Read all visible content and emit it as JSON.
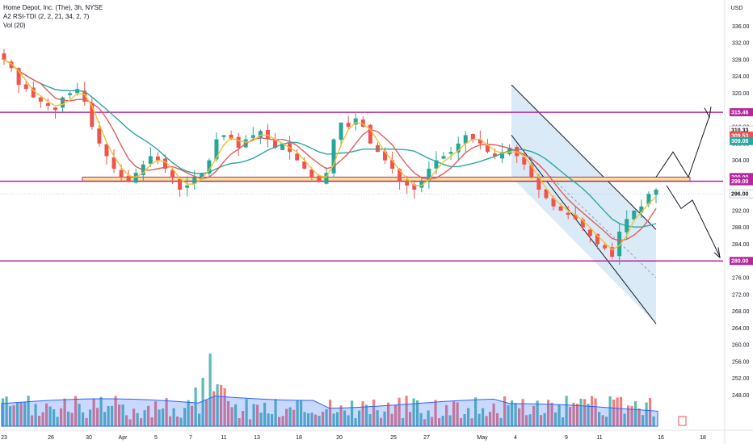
{
  "legend": {
    "title": "Home Depot, Inc. (The), 3h, NYSE",
    "indicator1": "A2 RSI-TDI (2, 2, 21, 34, 2, 7)",
    "indicator2": "Vol (20)"
  },
  "currency": "USD",
  "colors": {
    "up": "#26a69a",
    "down": "#ef5350",
    "level": "#b5289c",
    "support": "#f6e58d",
    "channel": "#bcd9f0",
    "ma_teal": "#2aa7a1",
    "ma_red": "#e05d5d",
    "ma_yellow": "#f2c230",
    "vol_area": "#2962ff"
  },
  "chart_data": {
    "type": "candlestick",
    "y_axis": {
      "ylim": [
        245,
        338
      ],
      "ticks": [
        "336.00",
        "332.00",
        "328.00",
        "324.00",
        "320.00",
        "316.00",
        "312.00",
        "308.00",
        "304.00",
        "300.00",
        "296.00",
        "292.00",
        "288.00",
        "284.00",
        "280.00",
        "276.00",
        "272.00",
        "268.00",
        "264.00",
        "260.00",
        "256.00",
        "252.00",
        "248.00"
      ]
    },
    "x_axis": {
      "ticks": [
        "23",
        "26",
        "30",
        "Apr",
        "5",
        "7",
        "11",
        "13",
        "18",
        "20",
        "25",
        "27",
        "May",
        "4",
        "9",
        "11",
        "16",
        "18"
      ]
    },
    "horizontal_levels": [
      315.46,
      299.0,
      280.0
    ],
    "support_zone": [
      299.0,
      300.0
    ],
    "price_tags": [
      {
        "label": "315.46",
        "color": "#b5289c"
      },
      {
        "label": "310.33",
        "color": "#ffffff",
        "text": "#131722"
      },
      {
        "label": "309.53",
        "color": "#ef5350"
      },
      {
        "label": "309.08",
        "color": "#2aa7a1"
      },
      {
        "label": "300.00",
        "color": "#b5289c"
      },
      {
        "label": "299.00",
        "color": "#b5289c"
      },
      {
        "label": "296.00",
        "color": "#ffffff",
        "text": "#131722"
      },
      {
        "label": "280.00",
        "color": "#b5289c"
      }
    ],
    "series": [
      {
        "name": "price_close",
        "values": [
          328,
          326,
          322,
          321,
          319,
          318,
          317,
          316,
          319,
          320,
          321,
          318,
          312,
          308,
          305,
          302,
          300,
          299,
          301,
          303,
          305,
          304,
          302,
          300,
          297,
          298,
          300,
          301,
          304,
          309,
          310,
          309,
          307,
          309,
          310,
          311,
          309,
          307,
          308,
          306,
          304,
          302,
          300,
          299,
          301,
          309,
          313,
          312,
          314,
          312,
          308,
          306,
          304,
          302,
          299,
          298,
          297,
          299,
          302,
          304,
          305,
          306,
          308,
          310,
          309,
          308,
          306,
          305,
          306,
          307,
          305,
          303,
          300,
          297,
          295,
          293,
          292,
          291,
          290,
          288,
          286,
          284,
          283,
          281,
          287,
          290,
          292,
          293,
          296,
          297
        ]
      }
    ],
    "annotation_projection": "arrows: breakout to ~316 or drop to ~280"
  }
}
